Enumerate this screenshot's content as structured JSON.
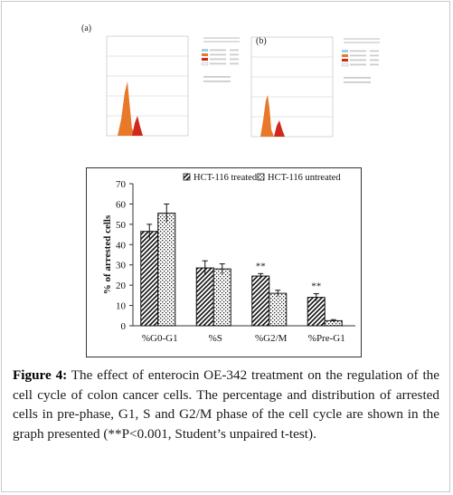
{
  "figure": {
    "panel_a_label": "(a)",
    "panel_b_label": "(b)",
    "caption_label": "Figure 4:",
    "caption_text": "The effect of enterocin OE-342 treatment on the regulation of the cell cycle of colon cancer cells. The percentage and distribution of arrested cells in pre-phase, G1, S and G2/M phase of the cell cycle are shown in the graph presented (**P<0.001, Student’s unpaired t-test)."
  },
  "colors": {
    "orange_peak": "#e8782a",
    "red_peak": "#d0281d",
    "axis": "#333333"
  },
  "chart_data": {
    "type": "bar",
    "categories": [
      "%G0-G1",
      "%S",
      "%G2/M",
      "%Pre-G1"
    ],
    "series": [
      {
        "name": "HCT-116 treated",
        "pattern": "diagonal-hatch",
        "values": [
          46.5,
          28.5,
          24.5,
          14
        ],
        "errors": [
          3.5,
          3.5,
          1.2,
          1.8
        ]
      },
      {
        "name": "HCT-116 untreated",
        "pattern": "dots",
        "values": [
          55.5,
          28,
          16,
          2.5
        ],
        "errors": [
          4.5,
          2.5,
          1.5,
          0.5
        ]
      }
    ],
    "significance": [
      "",
      "",
      "**",
      "**"
    ],
    "ylabel": "% of arrested cells",
    "xlabel": "",
    "ylim": [
      0,
      70
    ],
    "yticks": [
      0,
      10,
      20,
      30,
      40,
      50,
      60,
      70
    ],
    "legend_position": "top"
  }
}
